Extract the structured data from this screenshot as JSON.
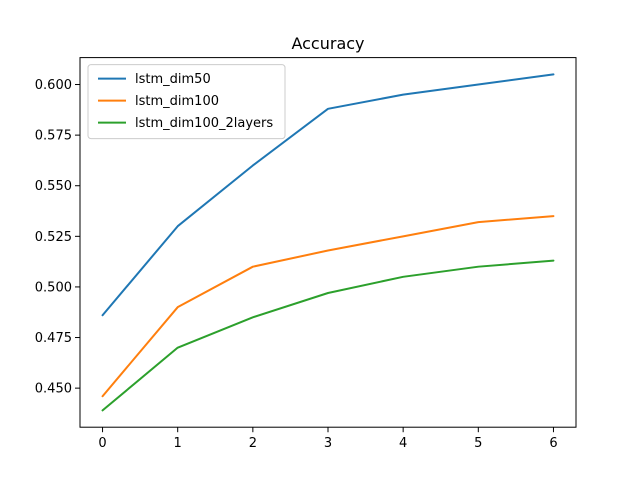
{
  "chart_data": {
    "type": "line",
    "title": "Accuracy",
    "xlabel": "",
    "ylabel": "",
    "x": [
      0,
      1,
      2,
      3,
      4,
      5,
      6
    ],
    "xticks": [
      0,
      1,
      2,
      3,
      4,
      5,
      6
    ],
    "yticks": [
      0.45,
      0.475,
      0.5,
      0.525,
      0.55,
      0.575,
      0.6
    ],
    "ytick_labels": [
      "0.450",
      "0.475",
      "0.500",
      "0.525",
      "0.550",
      "0.575",
      "0.600"
    ],
    "xlim": [
      -0.3,
      6.3
    ],
    "ylim": [
      0.4307,
      0.6133
    ],
    "grid": false,
    "legend_position": "upper-left",
    "series": [
      {
        "name": "lstm_dim50",
        "color": "#1f77b4",
        "values": [
          0.486,
          0.53,
          0.56,
          0.588,
          0.595,
          0.6,
          0.605
        ]
      },
      {
        "name": "lstm_dim100",
        "color": "#ff7f0e",
        "values": [
          0.446,
          0.49,
          0.51,
          0.518,
          0.525,
          0.532,
          0.535
        ]
      },
      {
        "name": "lstm_dim100_2layers",
        "color": "#2ca02c",
        "values": [
          0.439,
          0.47,
          0.485,
          0.497,
          0.505,
          0.51,
          0.513
        ]
      }
    ]
  }
}
